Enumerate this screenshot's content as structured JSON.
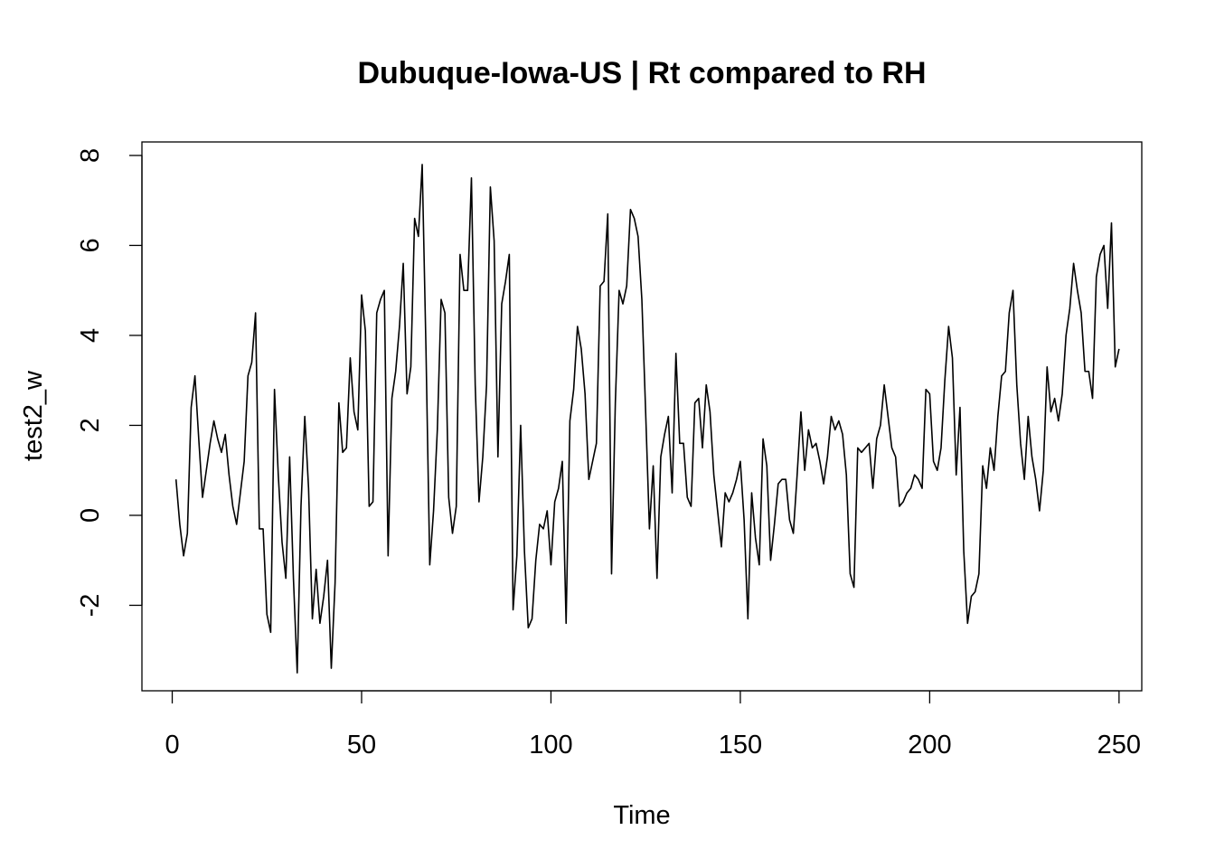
{
  "chart_data": {
    "type": "line",
    "title": "Dubuque-Iowa-US | Rt compared to RH",
    "xlabel": "Time",
    "ylabel": "test2_w",
    "xlim": [
      -8,
      256
    ],
    "ylim": [
      -3.9,
      8.3
    ],
    "x_ticks": [
      0,
      50,
      100,
      150,
      200,
      250
    ],
    "y_ticks": [
      -2,
      0,
      2,
      4,
      6,
      8
    ],
    "x_tick_labels": [
      "0",
      "50",
      "100",
      "150",
      "200",
      "250"
    ],
    "y_tick_labels": [
      "-2",
      "0",
      "2",
      "4",
      "6",
      "8"
    ],
    "grid": false,
    "legend": "none",
    "line_color": "#000000",
    "x_start": 1,
    "series": [
      {
        "values": [
          0.8,
          -0.2,
          -0.9,
          -0.4,
          2.4,
          3.1,
          1.7,
          0.4,
          1.0,
          1.6,
          2.1,
          1.7,
          1.4,
          1.8,
          0.9,
          0.2,
          -0.2,
          0.5,
          1.2,
          3.1,
          3.4,
          4.5,
          -0.3,
          -0.3,
          -2.2,
          -2.6,
          2.8,
          0.9,
          -0.6,
          -1.4,
          1.3,
          -1.4,
          -3.5,
          0.2,
          2.2,
          0.6,
          -2.3,
          -1.2,
          -2.4,
          -1.8,
          -1.0,
          -3.4,
          -1.5,
          2.5,
          1.4,
          1.5,
          3.5,
          2.3,
          1.9,
          4.9,
          4.1,
          0.2,
          0.3,
          4.5,
          4.8,
          5.0,
          -0.9,
          2.6,
          3.2,
          4.2,
          5.6,
          2.7,
          3.3,
          6.6,
          6.2,
          7.8,
          3.7,
          -1.1,
          0.1,
          1.9,
          4.8,
          4.5,
          0.4,
          -0.4,
          0.2,
          5.8,
          5.0,
          5.0,
          7.5,
          2.9,
          0.3,
          1.3,
          2.9,
          7.3,
          6.1,
          1.3,
          4.7,
          5.2,
          5.8,
          -2.1,
          -0.9,
          2.0,
          -0.8,
          -2.5,
          -2.3,
          -1.0,
          -0.2,
          -0.3,
          0.1,
          -1.1,
          0.3,
          0.6,
          1.2,
          -2.4,
          2.1,
          2.8,
          4.2,
          3.7,
          2.7,
          0.8,
          1.2,
          1.6,
          5.1,
          5.2,
          6.7,
          -1.3,
          2.5,
          5.0,
          4.7,
          5.1,
          6.8,
          6.6,
          6.2,
          4.8,
          2.3,
          -0.3,
          1.1,
          -1.4,
          1.3,
          1.8,
          2.2,
          0.5,
          3.6,
          1.6,
          1.6,
          0.4,
          0.2,
          2.5,
          2.6,
          1.5,
          2.9,
          2.3,
          0.9,
          0.1,
          -0.7,
          0.5,
          0.3,
          0.5,
          0.8,
          1.2,
          -0.1,
          -2.3,
          0.5,
          -0.5,
          -1.1,
          1.7,
          1.1,
          -1.0,
          -0.2,
          0.7,
          0.8,
          0.8,
          -0.1,
          -0.4,
          0.9,
          2.3,
          1.0,
          1.9,
          1.5,
          1.6,
          1.2,
          0.7,
          1.3,
          2.2,
          1.9,
          2.1,
          1.8,
          0.9,
          -1.3,
          -1.6,
          1.5,
          1.4,
          1.5,
          1.6,
          0.6,
          1.7,
          2.0,
          2.9,
          2.2,
          1.5,
          1.3,
          0.2,
          0.3,
          0.5,
          0.6,
          0.9,
          0.8,
          0.6,
          2.8,
          2.7,
          1.2,
          1.0,
          1.5,
          3.0,
          4.2,
          3.5,
          0.9,
          2.4,
          -0.8,
          -2.4,
          -1.8,
          -1.7,
          -1.3,
          1.1,
          0.6,
          1.5,
          1.0,
          2.2,
          3.1,
          3.2,
          4.5,
          5.0,
          2.9,
          1.6,
          0.8,
          2.2,
          1.3,
          0.8,
          0.1,
          1.0,
          3.3,
          2.3,
          2.6,
          2.1,
          2.7,
          4.0,
          4.6,
          5.6,
          5.0,
          4.5,
          3.2,
          3.2,
          2.6,
          5.3,
          5.8,
          6.0,
          4.6,
          6.5,
          3.3,
          3.7
        ]
      }
    ]
  }
}
